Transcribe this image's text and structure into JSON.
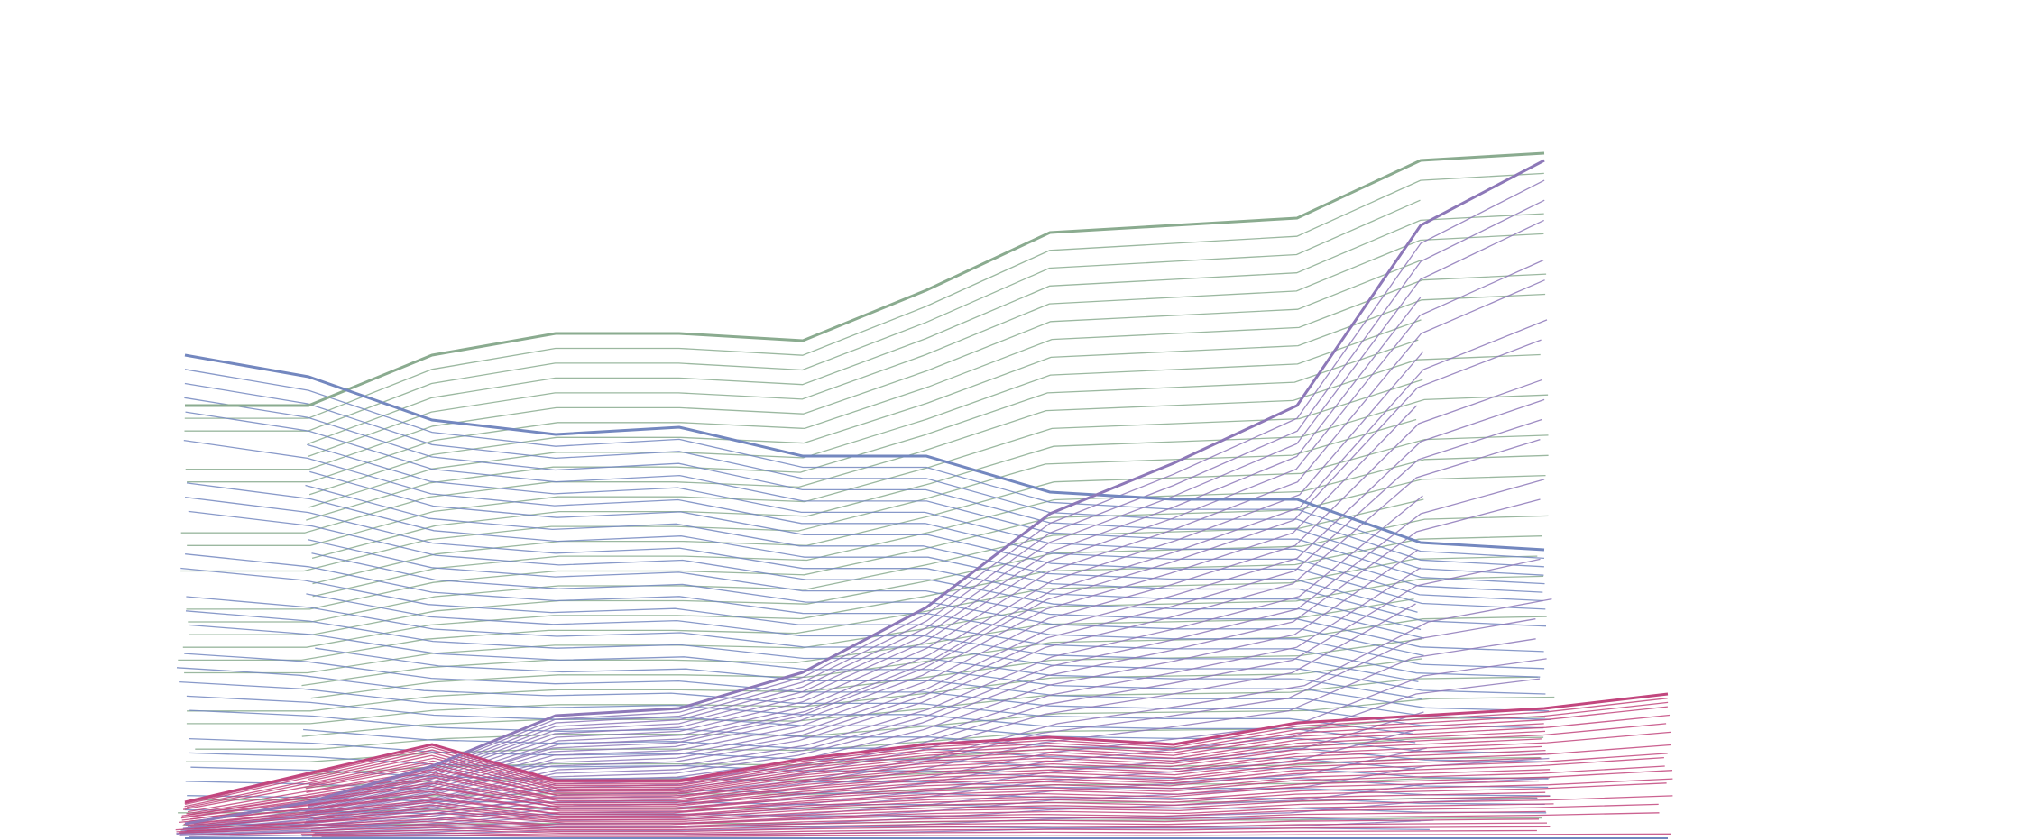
{
  "chart_data": {
    "type": "line",
    "title": "",
    "xlabel": "",
    "ylabel": "",
    "x": [
      1,
      2,
      3,
      4,
      5,
      6,
      7,
      8,
      9,
      10,
      11,
      12,
      13
    ],
    "grid": false,
    "legend": "none",
    "colors": {
      "green": "#8aab8f",
      "blue": "#7387bf",
      "purple": "#8d78b8",
      "pink": "#c2467e"
    },
    "ylim": [
      0,
      100
    ],
    "series": [
      {
        "color": "green",
        "values": [
          60,
          60,
          67,
          70,
          70,
          69,
          76,
          84,
          85,
          86,
          94,
          95,
          null
        ]
      },
      {
        "color": "blue",
        "values": [
          67,
          64,
          58,
          56,
          57,
          53,
          53,
          48,
          47,
          47,
          41,
          40,
          null
        ]
      },
      {
        "color": "purple",
        "values": [
          2,
          5,
          10,
          17,
          18,
          23,
          32,
          45,
          52,
          60,
          85,
          94,
          null
        ]
      },
      {
        "color": "pink",
        "values": [
          5,
          9,
          13,
          8,
          8,
          11,
          13,
          14,
          13,
          16,
          17,
          18,
          20
        ]
      }
    ],
    "labels": [
      {
        "text": "",
        "near": "top-left"
      },
      {
        "text": "",
        "near": "center-left"
      },
      {
        "text": "",
        "near": "center"
      },
      {
        "text": "",
        "near": "bottom-right"
      }
    ]
  }
}
